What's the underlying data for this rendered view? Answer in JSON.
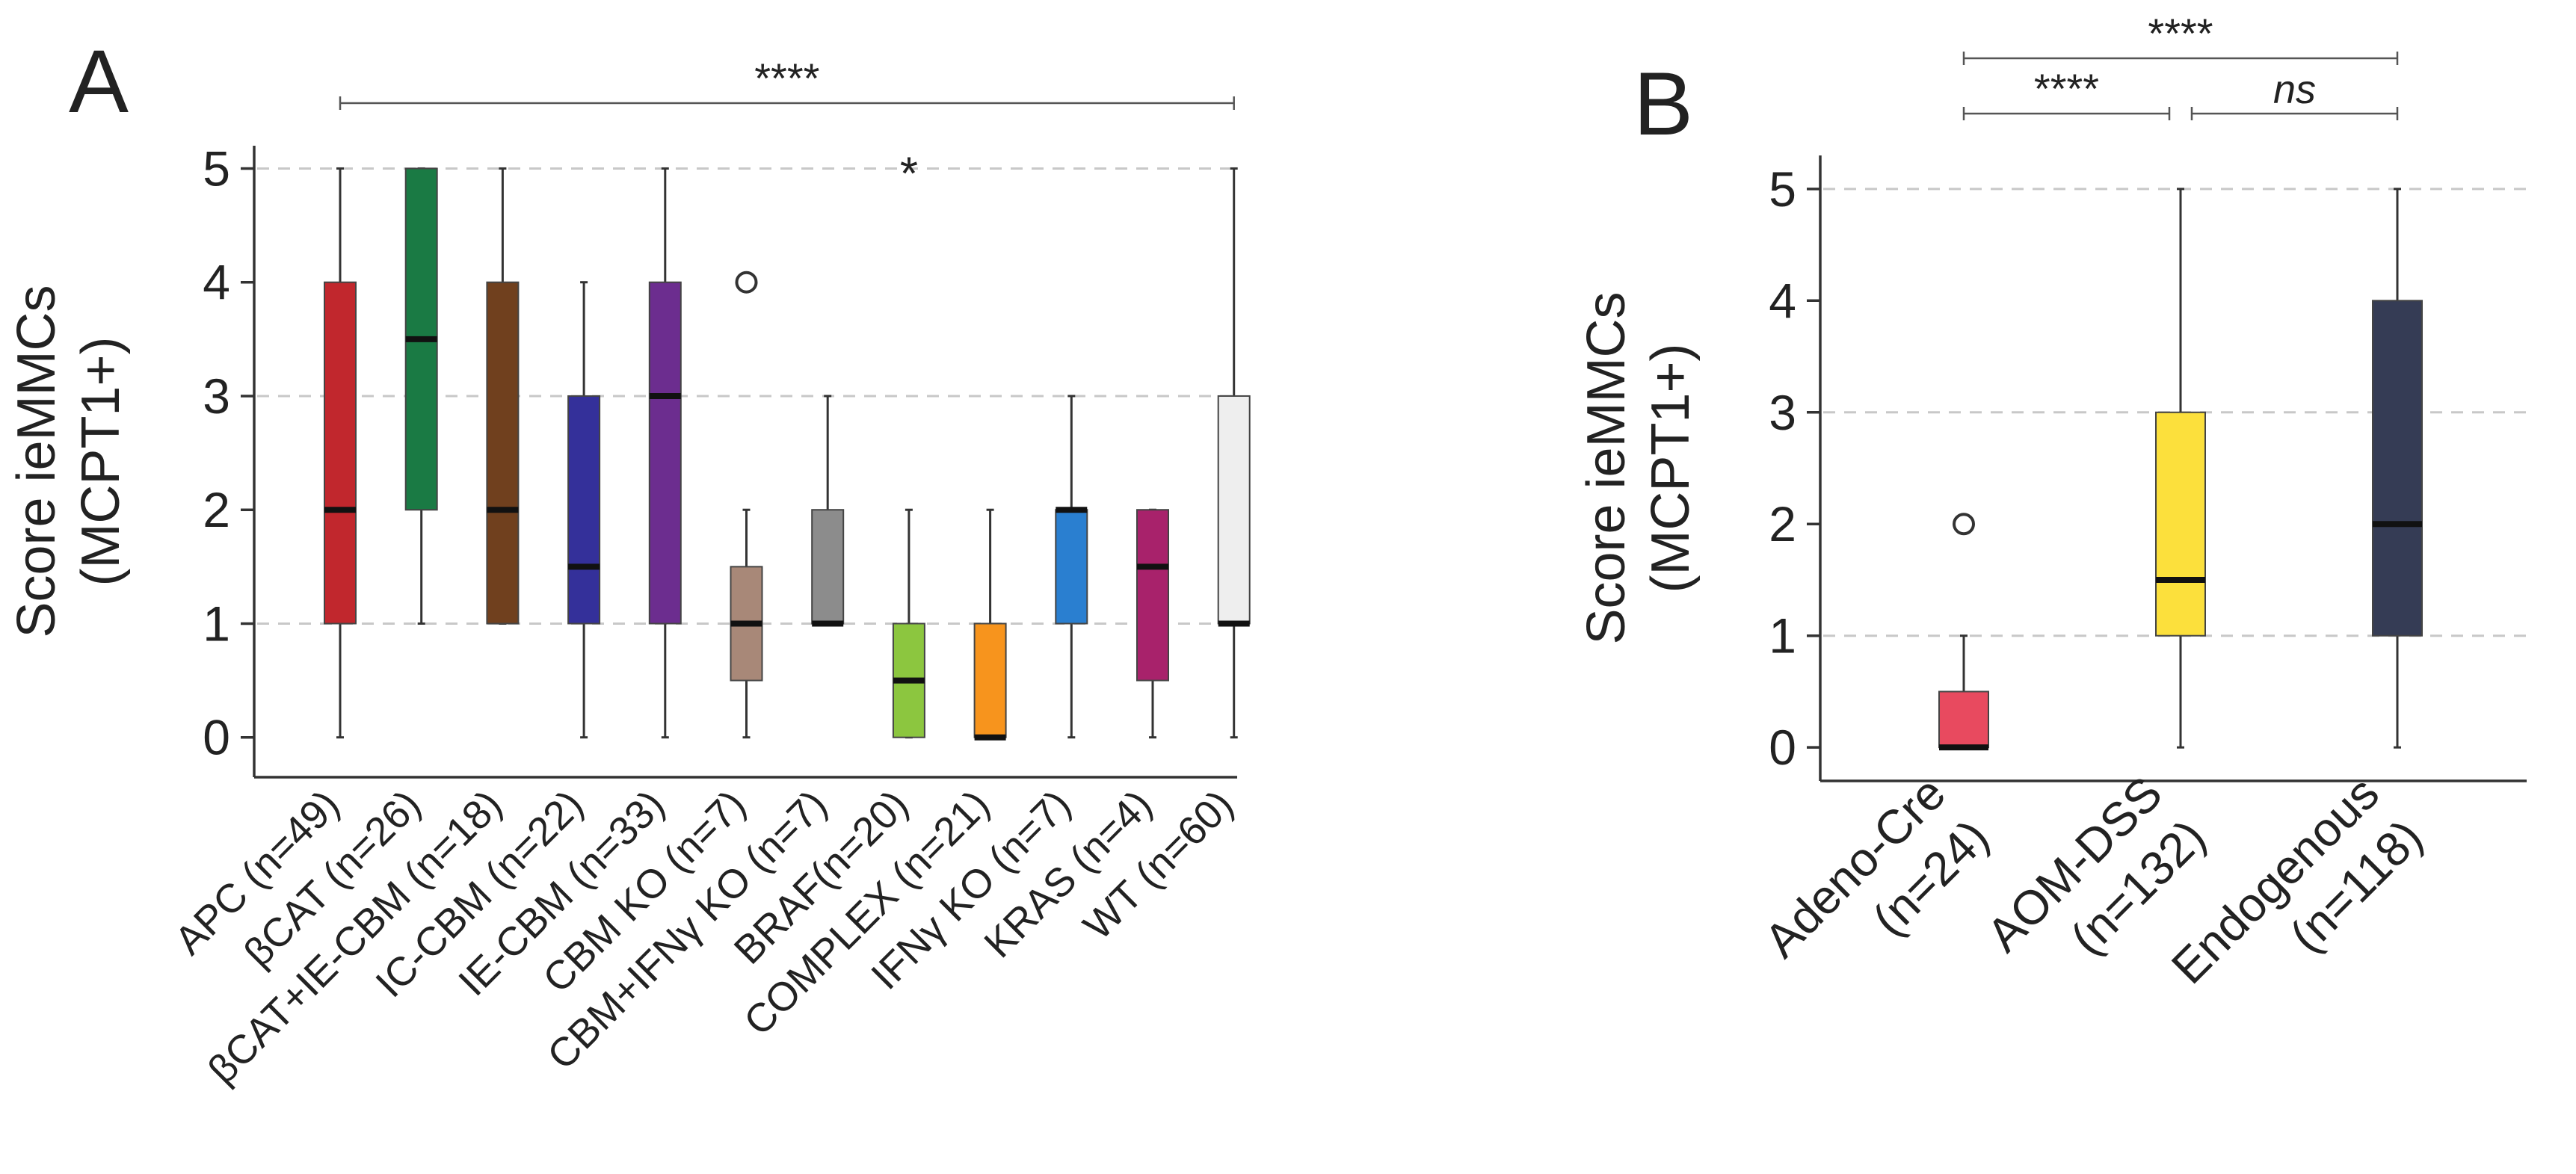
{
  "chart_data": [
    {
      "panel_label": "A",
      "type": "box",
      "ylabel": "Score ieMMCs (MCPT1+)",
      "ylabel_lines": [
        "Score ieMMCs",
        "(MCPT1+)"
      ],
      "ylim": [
        -0.35,
        5.2
      ],
      "yticks": [
        0,
        1,
        2,
        3,
        4,
        5
      ],
      "grid": "dashed horizontal at 1, 3, 5",
      "grid_values": [
        1,
        3,
        5
      ],
      "categories": [
        "APC (n=49)",
        "βCAT (n=26)",
        "βCAT+IE-CBM (n=18)",
        "IC-CBM (n=22)",
        "IE-CBM (n=33)",
        "CBM KO (n=7)",
        "CBM+IFNγ KO (n=7)",
        "BRAF(n=20)",
        "COMPLEX (n=21)",
        "IFNγ KO (n=7)",
        "KRAS (n=4)",
        "WT (n=60)"
      ],
      "boxes": [
        {
          "whisker_low": 0,
          "q1": 1,
          "median": 2,
          "q3": 4,
          "whisker_high": 5,
          "color": "#c1272d"
        },
        {
          "whisker_low": 1,
          "q1": 2,
          "median": 3.5,
          "q3": 5,
          "whisker_high": 5,
          "color": "#1a7a44"
        },
        {
          "whisker_low": 1,
          "q1": 1,
          "median": 2,
          "q3": 4,
          "whisker_high": 5,
          "color": "#70401e"
        },
        {
          "whisker_low": 0,
          "q1": 1,
          "median": 1.5,
          "q3": 3,
          "whisker_high": 4,
          "color": "#34309a"
        },
        {
          "whisker_low": 0,
          "q1": 1,
          "median": 3,
          "q3": 4,
          "whisker_high": 5,
          "color": "#6c2d8f"
        },
        {
          "whisker_low": 0,
          "q1": 0.5,
          "median": 1,
          "q3": 1.5,
          "whisker_high": 2,
          "color": "#a88878"
        },
        {
          "whisker_low": 1,
          "q1": 1,
          "median": 1,
          "q3": 2,
          "whisker_high": 3,
          "color": "#8c8c8c"
        },
        {
          "whisker_low": 0,
          "q1": 0,
          "median": 0.5,
          "q3": 1,
          "whisker_high": 2,
          "color": "#8cc63f"
        },
        {
          "whisker_low": 0,
          "q1": 0,
          "median": 0,
          "q3": 1,
          "whisker_high": 2,
          "color": "#f7941d"
        },
        {
          "whisker_low": 0,
          "q1": 1,
          "median": 2,
          "q3": 2,
          "whisker_high": 3,
          "color": "#2a7fd0"
        },
        {
          "whisker_low": 0,
          "q1": 0.5,
          "median": 1.5,
          "q3": 2,
          "whisker_high": 2,
          "color": "#a8226b"
        },
        {
          "whisker_low": 0,
          "q1": 1,
          "median": 1,
          "q3": 3,
          "whisker_high": 5,
          "color": "#eeeeee"
        }
      ],
      "outliers": [
        {
          "category_index": 5,
          "value": 4,
          "marker": "circle"
        },
        {
          "category_index": 7,
          "value": 5,
          "marker": "star"
        }
      ],
      "significance": [
        {
          "from_index": 0,
          "to_index": 11,
          "label": "****"
        }
      ]
    },
    {
      "panel_label": "B",
      "type": "box",
      "ylabel": "Score ieMMCs (MCPT1+)",
      "ylabel_lines": [
        "Score ieMMCs",
        "(MCPT1+)"
      ],
      "ylim": [
        -0.3,
        5.3
      ],
      "yticks": [
        0,
        1,
        2,
        3,
        4,
        5
      ],
      "grid": "dashed horizontal at 1, 3, 5",
      "grid_values": [
        1,
        3,
        5
      ],
      "categories": [
        "Adeno-Cre (n=24)",
        "AOM-DSS (n=132)",
        "Endogenous (n=118)"
      ],
      "category_lines": [
        [
          "Adeno-Cre",
          "(n=24)"
        ],
        [
          "AOM-DSS",
          "(n=132)"
        ],
        [
          "Endogenous",
          "(n=118)"
        ]
      ],
      "boxes": [
        {
          "whisker_low": 0,
          "q1": 0,
          "median": 0,
          "q3": 0.5,
          "whisker_high": 1,
          "color": "#e84a5f"
        },
        {
          "whisker_low": 0,
          "q1": 1,
          "median": 1.5,
          "q3": 3,
          "whisker_high": 5,
          "color": "#fce03c"
        },
        {
          "whisker_low": 0,
          "q1": 1,
          "median": 2,
          "q3": 4,
          "whisker_high": 5,
          "color": "#353c55"
        }
      ],
      "outliers": [
        {
          "category_index": 0,
          "value": 2,
          "marker": "circle"
        }
      ],
      "significance": [
        {
          "from_index": 0,
          "to_index": 2,
          "label": "****"
        },
        {
          "from_index": 0,
          "to_index": 1,
          "label": "****"
        },
        {
          "from_index": 1,
          "to_index": 2,
          "label": "ns"
        }
      ]
    }
  ]
}
